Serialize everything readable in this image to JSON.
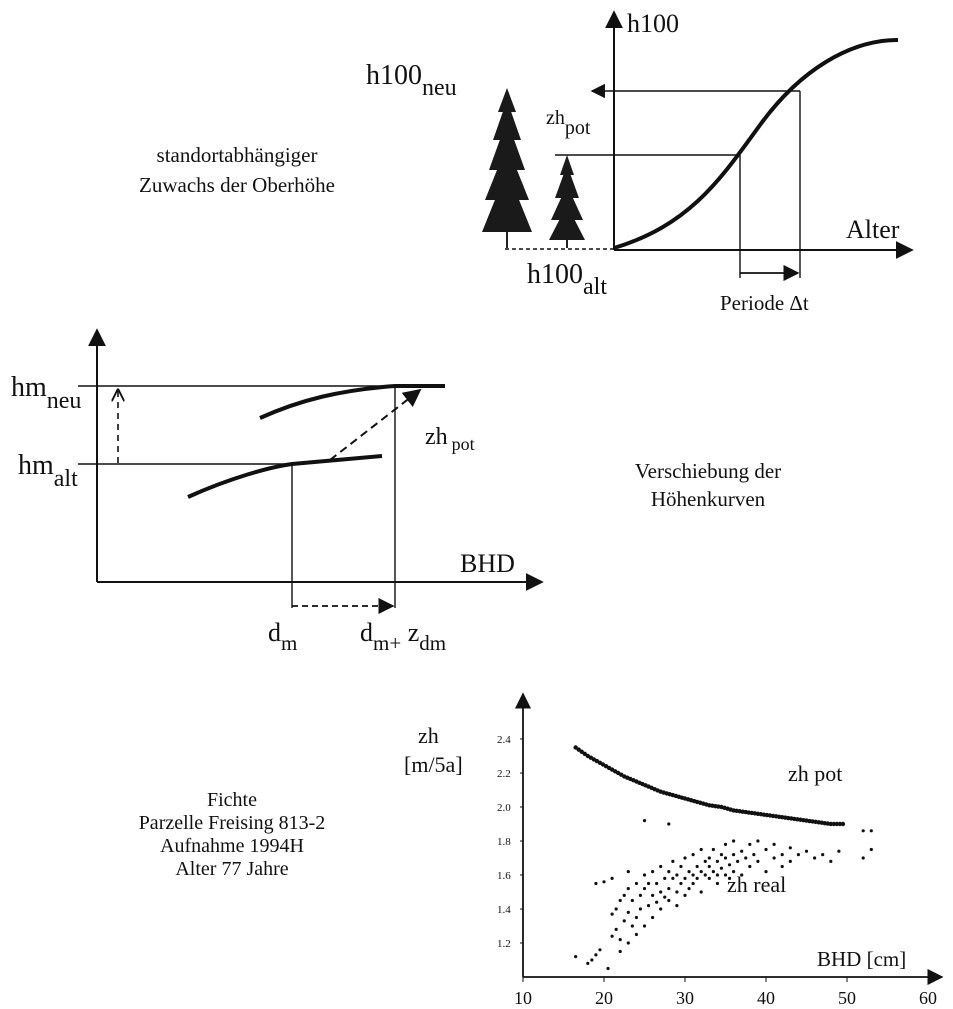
{
  "panel1": {
    "caption_line1": "standortabhängiger",
    "caption_line2": "Zuwachs der Oberhöhe",
    "y_axis_label": "h100",
    "x_axis_label": "Alter",
    "h100_neu": {
      "base": "h100",
      "sub": "neu"
    },
    "zh_pot": {
      "base": "zh",
      "sub": "pot"
    },
    "h100_alt": {
      "base": "h100",
      "sub": "alt"
    },
    "period_label": "Periode Δt"
  },
  "panel2": {
    "caption_line1": "Verschiebung der",
    "caption_line2": "Höhenkurven",
    "x_axis_label": "BHD",
    "hm_neu": {
      "base": "hm",
      "sub": "neu"
    },
    "hm_alt": {
      "base": "hm",
      "sub": "alt"
    },
    "zh_pot": {
      "base": "zh",
      "sub": "pot"
    },
    "dm": {
      "base": "d",
      "sub": "m"
    },
    "dm_zdm": {
      "base": "d",
      "sub": "m+",
      "mid": " z",
      "sub2": "dm"
    }
  },
  "panel3": {
    "caption_lines": [
      "Fichte",
      "Parzelle Freising 813-2",
      "Aufnahme 1994H",
      "Alter 77 Jahre"
    ],
    "zh_pot_label": "zh pot",
    "zh_real_label": "zh real"
  },
  "chart_data": {
    "type": "scatter",
    "title": "",
    "xlabel": "BHD [cm]",
    "ylabel_line1": "zh",
    "ylabel_line2": "[m/5a]",
    "xlim": [
      10,
      60
    ],
    "ylim": [
      1.0,
      2.5
    ],
    "x_ticks": [
      10,
      20,
      30,
      40,
      50,
      60
    ],
    "y_ticks": [
      "1.2",
      "1.4",
      "1.6",
      "1.8",
      "2.0",
      "2.2",
      "2.4"
    ],
    "series": [
      {
        "name": "zh pot",
        "points": [
          [
            16.5,
            2.35
          ],
          [
            18,
            2.3
          ],
          [
            19.5,
            2.26
          ],
          [
            21,
            2.22
          ],
          [
            22.5,
            2.18
          ],
          [
            24,
            2.15
          ],
          [
            25.5,
            2.12
          ],
          [
            27,
            2.09
          ],
          [
            28.5,
            2.07
          ],
          [
            30,
            2.05
          ],
          [
            31.5,
            2.03
          ],
          [
            33,
            2.01
          ],
          [
            34.5,
            2.0
          ],
          [
            36,
            1.98
          ],
          [
            37.5,
            1.97
          ],
          [
            39,
            1.96
          ],
          [
            40.5,
            1.95
          ],
          [
            42,
            1.94
          ],
          [
            43.5,
            1.93
          ],
          [
            45,
            1.92
          ],
          [
            46.5,
            1.91
          ],
          [
            48,
            1.9
          ],
          [
            49.5,
            1.9
          ]
        ]
      },
      {
        "name": "zh real",
        "points": [
          [
            16.5,
            1.12
          ],
          [
            18,
            1.08
          ],
          [
            18.5,
            1.1
          ],
          [
            19,
            1.13
          ],
          [
            19.5,
            1.16
          ],
          [
            20,
            1.56
          ],
          [
            20.5,
            1.05
          ],
          [
            21,
            1.37
          ],
          [
            21,
            1.24
          ],
          [
            21.5,
            1.28
          ],
          [
            21.5,
            1.4
          ],
          [
            22,
            1.22
          ],
          [
            22,
            1.45
          ],
          [
            22,
            1.15
          ],
          [
            22.5,
            1.33
          ],
          [
            22.5,
            1.48
          ],
          [
            23,
            1.2
          ],
          [
            23,
            1.52
          ],
          [
            23,
            1.38
          ],
          [
            23.5,
            1.3
          ],
          [
            23.5,
            1.45
          ],
          [
            24,
            1.35
          ],
          [
            24,
            1.55
          ],
          [
            24,
            1.25
          ],
          [
            24.5,
            1.48
          ],
          [
            24.5,
            1.4
          ],
          [
            25,
            1.52
          ],
          [
            25,
            1.3
          ],
          [
            25,
            1.6
          ],
          [
            25.5,
            1.42
          ],
          [
            25.5,
            1.55
          ],
          [
            26,
            1.48
          ],
          [
            26,
            1.35
          ],
          [
            26,
            1.62
          ],
          [
            26.5,
            1.55
          ],
          [
            26.5,
            1.44
          ],
          [
            27,
            1.5
          ],
          [
            27,
            1.65
          ],
          [
            27,
            1.4
          ],
          [
            27.5,
            1.58
          ],
          [
            27.5,
            1.47
          ],
          [
            28,
            1.52
          ],
          [
            28,
            1.62
          ],
          [
            28,
            1.45
          ],
          [
            28.5,
            1.58
          ],
          [
            28.5,
            1.68
          ],
          [
            29,
            1.5
          ],
          [
            29,
            1.6
          ],
          [
            29,
            1.42
          ],
          [
            29.5,
            1.55
          ],
          [
            29.5,
            1.65
          ],
          [
            30,
            1.58
          ],
          [
            30,
            1.48
          ],
          [
            30,
            1.7
          ],
          [
            30.5,
            1.62
          ],
          [
            30.5,
            1.52
          ],
          [
            31,
            1.6
          ],
          [
            31,
            1.72
          ],
          [
            31,
            1.55
          ],
          [
            31.5,
            1.65
          ],
          [
            31.5,
            1.58
          ],
          [
            32,
            1.62
          ],
          [
            32,
            1.5
          ],
          [
            32,
            1.75
          ],
          [
            32.5,
            1.6
          ],
          [
            32.5,
            1.68
          ],
          [
            33,
            1.58
          ],
          [
            33,
            1.7
          ],
          [
            33,
            1.65
          ],
          [
            33.5,
            1.62
          ],
          [
            33.5,
            1.75
          ],
          [
            34,
            1.6
          ],
          [
            34,
            1.68
          ],
          [
            34,
            1.55
          ],
          [
            34.5,
            1.72
          ],
          [
            34.5,
            1.64
          ],
          [
            35,
            1.7
          ],
          [
            35,
            1.6
          ],
          [
            35,
            1.78
          ],
          [
            35.5,
            1.66
          ],
          [
            35.5,
            1.58
          ],
          [
            36,
            1.72
          ],
          [
            36,
            1.62
          ],
          [
            36,
            1.8
          ],
          [
            36.5,
            1.68
          ],
          [
            37,
            1.74
          ],
          [
            37,
            1.6
          ],
          [
            37.5,
            1.7
          ],
          [
            38,
            1.78
          ],
          [
            38,
            1.65
          ],
          [
            38.5,
            1.72
          ],
          [
            39,
            1.68
          ],
          [
            39,
            1.8
          ],
          [
            40,
            1.75
          ],
          [
            40,
            1.62
          ],
          [
            41,
            1.7
          ],
          [
            41,
            1.78
          ],
          [
            42,
            1.72
          ],
          [
            42,
            1.65
          ],
          [
            43,
            1.76
          ],
          [
            43,
            1.68
          ],
          [
            44,
            1.72
          ],
          [
            45,
            1.74
          ],
          [
            46,
            1.7
          ],
          [
            47,
            1.72
          ],
          [
            48,
            1.68
          ],
          [
            49,
            1.74
          ],
          [
            52,
            1.86
          ],
          [
            52,
            1.7
          ],
          [
            53,
            1.75
          ],
          [
            53,
            1.86
          ],
          [
            25,
            1.92
          ],
          [
            28,
            1.9
          ],
          [
            21,
            1.58
          ],
          [
            23,
            1.62
          ],
          [
            19,
            1.55
          ]
        ]
      }
    ]
  }
}
